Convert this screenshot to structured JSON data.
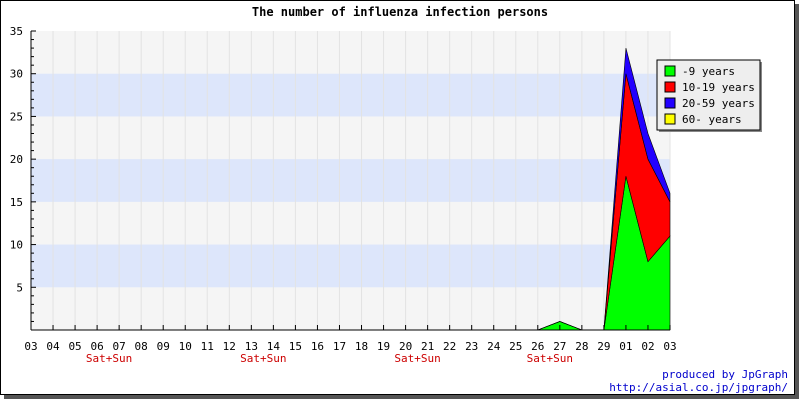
{
  "chart_data": {
    "type": "area",
    "stacked": true,
    "title": "The number of influenza infection persons",
    "x": [
      "03",
      "04",
      "05",
      "06",
      "07",
      "08",
      "09",
      "10",
      "11",
      "12",
      "13",
      "14",
      "15",
      "16",
      "17",
      "18",
      "19",
      "20",
      "21",
      "22",
      "23",
      "24",
      "25",
      "26",
      "27",
      "28",
      "29",
      "01",
      "02",
      "03"
    ],
    "weekend_labels": [
      {
        "x": "06",
        "text": "Sat+Sun"
      },
      {
        "x": "13",
        "text": "Sat+Sun"
      },
      {
        "x": "20",
        "text": "Sat+Sun"
      },
      {
        "x": "26",
        "text": "Sat+Sun"
      }
    ],
    "y_ticks": [
      5,
      10,
      15,
      20,
      25,
      30,
      35
    ],
    "ylim": [
      0,
      35
    ],
    "series": [
      {
        "name": "-9 years",
        "color": "#00ff00",
        "values": [
          0,
          0,
          0,
          0,
          0,
          0,
          0,
          0,
          0,
          0,
          0,
          0,
          0,
          0,
          0,
          0,
          0,
          0,
          0,
          0,
          0,
          0,
          0,
          0,
          1,
          0,
          0,
          18,
          8,
          11
        ]
      },
      {
        "name": "10-19 years",
        "color": "#ff0000",
        "values": [
          0,
          0,
          0,
          0,
          0,
          0,
          0,
          0,
          0,
          0,
          0,
          0,
          0,
          0,
          0,
          0,
          0,
          0,
          0,
          0,
          0,
          0,
          0,
          0,
          0,
          0,
          0,
          12,
          12,
          4
        ]
      },
      {
        "name": "20-59 years",
        "color": "#2200ff",
        "values": [
          0,
          0,
          0,
          0,
          0,
          0,
          0,
          0,
          0,
          0,
          0,
          0,
          0,
          0,
          0,
          0,
          0,
          0,
          0,
          0,
          0,
          0,
          0,
          0,
          0,
          0,
          0,
          3,
          3,
          1
        ]
      },
      {
        "name": "60- years",
        "color": "#ffff00",
        "values": [
          0,
          0,
          0,
          0,
          0,
          0,
          0,
          0,
          0,
          0,
          0,
          0,
          0,
          0,
          0,
          0,
          0,
          0,
          0,
          0,
          0,
          0,
          0,
          0,
          0,
          0,
          0,
          0,
          0,
          0
        ]
      }
    ],
    "legend_position": "top-right",
    "grid": true
  },
  "credits": {
    "line1": "produced by JpGraph",
    "line2": "http://asial.co.jp/jpgraph/"
  }
}
